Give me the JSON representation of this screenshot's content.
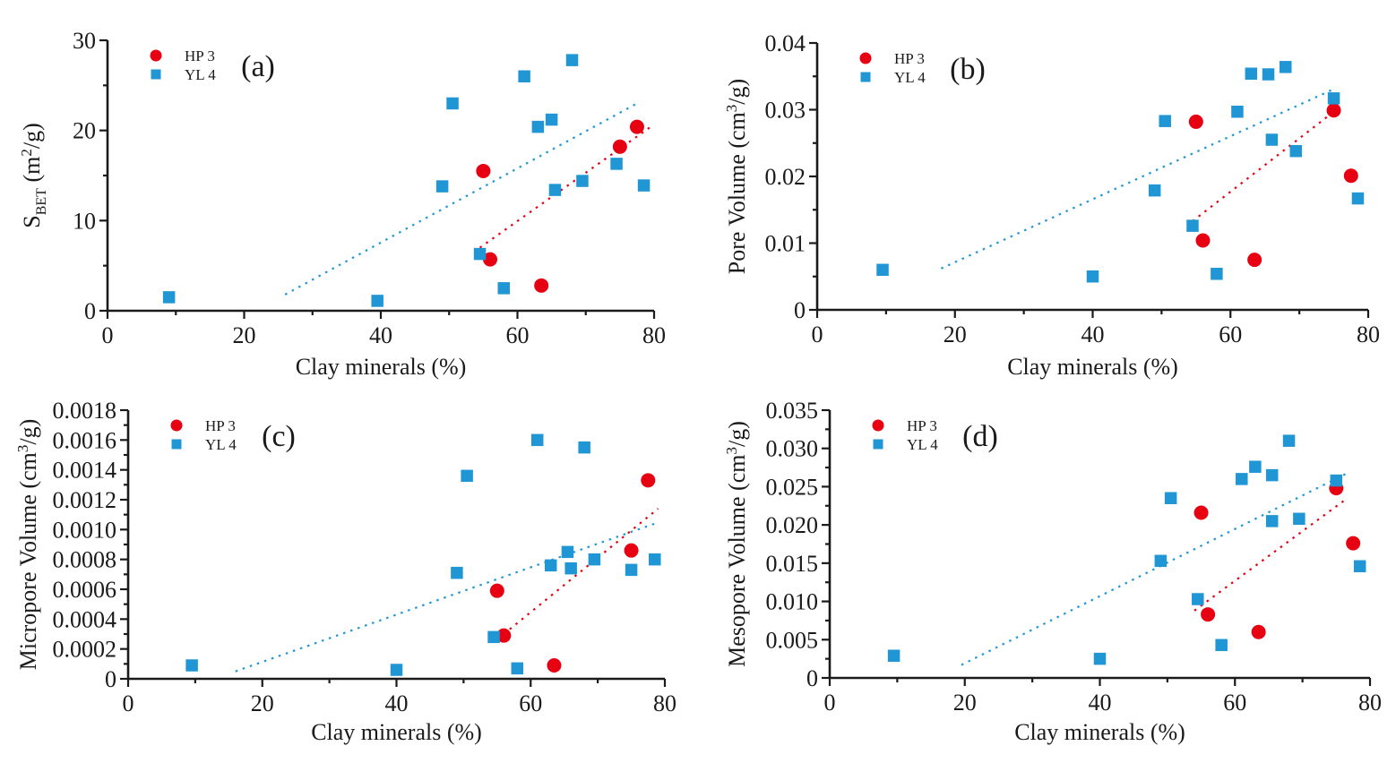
{
  "colors": {
    "hp3": "#e60011",
    "yl4": "#2097d4",
    "axis": "#1a1a1a",
    "background": "#ffffff"
  },
  "legend_labels": {
    "hp3": "HP 3",
    "yl4": "YL 4"
  },
  "xlabel": "Clay minerals (%)",
  "chart_data": [
    {
      "type": "scatter",
      "panel_label": "(a)",
      "xlabel": "Clay minerals (%)",
      "ylabel_parts": [
        {
          "t": "S"
        },
        {
          "sub": "BET"
        },
        {
          "t": " (m"
        },
        {
          "sup": "2"
        },
        {
          "t": "/g)"
        }
      ],
      "xlim": [
        0,
        80
      ],
      "xticks": [
        {
          "v": 0,
          "label": "0"
        },
        {
          "v": 20,
          "label": "20"
        },
        {
          "v": 40,
          "label": "40"
        },
        {
          "v": 60,
          "label": "60"
        },
        {
          "v": 80,
          "label": "80"
        }
      ],
      "x_minor_step": 10,
      "ylim": [
        0,
        30
      ],
      "yticks": [
        {
          "v": 0,
          "label": "0"
        },
        {
          "v": 10,
          "label": "10"
        },
        {
          "v": 20,
          "label": "20"
        },
        {
          "v": 30,
          "label": "30"
        }
      ],
      "y_minor_step": 5,
      "legend_position": "top-left",
      "grid": false,
      "series": [
        {
          "name": "HP 3",
          "marker": "circle",
          "color_key": "hp3",
          "points": [
            [
              55,
              15.5
            ],
            [
              56,
              5.7
            ],
            [
              63.5,
              2.8
            ],
            [
              75,
              18.2
            ],
            [
              77.5,
              20.4
            ]
          ]
        },
        {
          "name": "YL 4",
          "marker": "square",
          "color_key": "yl4",
          "points": [
            [
              9,
              1.5
            ],
            [
              39.5,
              1.1
            ],
            [
              49,
              13.8
            ],
            [
              50.5,
              23
            ],
            [
              54.5,
              6.3
            ],
            [
              58,
              2.5
            ],
            [
              61,
              26
            ],
            [
              63,
              20.4
            ],
            [
              65,
              21.2
            ],
            [
              65.5,
              13.4
            ],
            [
              68,
              27.8
            ],
            [
              69.5,
              14.4
            ],
            [
              74.5,
              16.3
            ],
            [
              78.5,
              13.9
            ]
          ]
        }
      ],
      "trend_lines": [
        {
          "series": "YL 4",
          "color_key": "yl4",
          "from": [
            26,
            1.8
          ],
          "to": [
            77.5,
            23.0
          ]
        },
        {
          "series": "HP 3",
          "color_key": "hp3",
          "from": [
            54.5,
            7.0
          ],
          "to": [
            79.5,
            20.4
          ]
        }
      ]
    },
    {
      "type": "scatter",
      "panel_label": "(b)",
      "xlabel": "Clay minerals (%)",
      "ylabel_parts": [
        {
          "t": "Pore Volume (cm"
        },
        {
          "sup": "3"
        },
        {
          "t": "/g)"
        }
      ],
      "xlim": [
        0,
        80
      ],
      "xticks": [
        {
          "v": 0,
          "label": "0"
        },
        {
          "v": 20,
          "label": "20"
        },
        {
          "v": 40,
          "label": "40"
        },
        {
          "v": 60,
          "label": "60"
        },
        {
          "v": 80,
          "label": "80"
        }
      ],
      "x_minor_step": 10,
      "ylim": [
        0,
        0.04
      ],
      "yticks": [
        {
          "v": 0,
          "label": "0"
        },
        {
          "v": 0.01,
          "label": "0.01"
        },
        {
          "v": 0.02,
          "label": "0.02"
        },
        {
          "v": 0.03,
          "label": "0.03"
        },
        {
          "v": 0.04,
          "label": "0.04"
        }
      ],
      "y_minor_step": 0.005,
      "legend_position": "top-left",
      "grid": false,
      "series": [
        {
          "name": "HP 3",
          "marker": "circle",
          "color_key": "hp3",
          "points": [
            [
              55,
              0.0282
            ],
            [
              56,
              0.0104
            ],
            [
              63.5,
              0.0075
            ],
            [
              75,
              0.0299
            ],
            [
              77.5,
              0.0201
            ]
          ]
        },
        {
          "name": "YL 4",
          "marker": "square",
          "color_key": "yl4",
          "points": [
            [
              9.5,
              0.006
            ],
            [
              40,
              0.005
            ],
            [
              49,
              0.0179
            ],
            [
              50.5,
              0.0283
            ],
            [
              54.5,
              0.0126
            ],
            [
              58,
              0.0054
            ],
            [
              61,
              0.0297
            ],
            [
              63,
              0.0354
            ],
            [
              65.5,
              0.0353
            ],
            [
              66,
              0.0255
            ],
            [
              68,
              0.0364
            ],
            [
              69.5,
              0.0238
            ],
            [
              75,
              0.0317
            ],
            [
              78.5,
              0.0167
            ]
          ]
        }
      ],
      "trend_lines": [
        {
          "series": "YL 4",
          "color_key": "yl4",
          "from": [
            18,
            0.0062
          ],
          "to": [
            75,
            0.0331
          ]
        },
        {
          "series": "HP 3",
          "color_key": "hp3",
          "from": [
            54.5,
            0.0133
          ],
          "to": [
            75,
            0.0297
          ]
        }
      ]
    },
    {
      "type": "scatter",
      "panel_label": "(c)",
      "xlabel": "Clay minerals (%)",
      "ylabel_parts": [
        {
          "t": "Micropore Volume (cm"
        },
        {
          "sup": "3"
        },
        {
          "t": "/g)"
        }
      ],
      "xlim": [
        0,
        80
      ],
      "xticks": [
        {
          "v": 0,
          "label": "0"
        },
        {
          "v": 20,
          "label": "20"
        },
        {
          "v": 40,
          "label": "40"
        },
        {
          "v": 60,
          "label": "60"
        },
        {
          "v": 80,
          "label": "80"
        }
      ],
      "x_minor_step": 10,
      "ylim": [
        0,
        0.0018
      ],
      "yticks": [
        {
          "v": 0,
          "label": "0"
        },
        {
          "v": 0.0002,
          "label": "0.0002"
        },
        {
          "v": 0.0004,
          "label": "0.0004"
        },
        {
          "v": 0.0006,
          "label": "0.0006"
        },
        {
          "v": 0.0008,
          "label": "0.0008"
        },
        {
          "v": 0.001,
          "label": "0.0010"
        },
        {
          "v": 0.0012,
          "label": "0.0012"
        },
        {
          "v": 0.0014,
          "label": "0.0014"
        },
        {
          "v": 0.0016,
          "label": "0.0016"
        },
        {
          "v": 0.0018,
          "label": "0.0018"
        }
      ],
      "y_minor_step": 0.0001,
      "legend_position": "top-left",
      "grid": false,
      "series": [
        {
          "name": "HP 3",
          "marker": "circle",
          "color_key": "hp3",
          "points": [
            [
              55,
              0.00059
            ],
            [
              56,
              0.00029
            ],
            [
              63.5,
              9e-05
            ],
            [
              75,
              0.00086
            ],
            [
              77.5,
              0.00133
            ]
          ]
        },
        {
          "name": "YL 4",
          "marker": "square",
          "color_key": "yl4",
          "points": [
            [
              9.5,
              9e-05
            ],
            [
              40,
              6e-05
            ],
            [
              49,
              0.00071
            ],
            [
              50.5,
              0.00136
            ],
            [
              54.5,
              0.00028
            ],
            [
              58,
              7e-05
            ],
            [
              61,
              0.0016
            ],
            [
              63,
              0.00076
            ],
            [
              65.5,
              0.00085
            ],
            [
              66,
              0.00074
            ],
            [
              68,
              0.00155
            ],
            [
              69.5,
              0.0008
            ],
            [
              75,
              0.00073
            ],
            [
              78.5,
              0.0008
            ]
          ]
        }
      ],
      "trend_lines": [
        {
          "series": "YL 4",
          "color_key": "yl4",
          "from": [
            16,
            5e-05
          ],
          "to": [
            78.5,
            0.00104
          ]
        },
        {
          "series": "HP 3",
          "color_key": "hp3",
          "from": [
            56,
            0.0003
          ],
          "to": [
            79,
            0.00114
          ]
        }
      ]
    },
    {
      "type": "scatter",
      "panel_label": "(d)",
      "xlabel": "Clay minerals (%)",
      "ylabel_parts": [
        {
          "t": "Mesopore Volume (cm"
        },
        {
          "sup": "3"
        },
        {
          "t": "/g)"
        }
      ],
      "xlim": [
        0,
        80
      ],
      "xticks": [
        {
          "v": 0,
          "label": "0"
        },
        {
          "v": 20,
          "label": "20"
        },
        {
          "v": 40,
          "label": "40"
        },
        {
          "v": 60,
          "label": "60"
        },
        {
          "v": 80,
          "label": "80"
        }
      ],
      "x_minor_step": 10,
      "ylim": [
        0,
        0.035
      ],
      "yticks": [
        {
          "v": 0,
          "label": "0"
        },
        {
          "v": 0.005,
          "label": "0.005"
        },
        {
          "v": 0.01,
          "label": "0.010"
        },
        {
          "v": 0.015,
          "label": "0.015"
        },
        {
          "v": 0.02,
          "label": "0.020"
        },
        {
          "v": 0.025,
          "label": "0.025"
        },
        {
          "v": 0.03,
          "label": "0.030"
        },
        {
          "v": 0.035,
          "label": "0.035"
        }
      ],
      "y_minor_step": 0.0025,
      "legend_position": "top-left",
      "grid": false,
      "series": [
        {
          "name": "HP 3",
          "marker": "circle",
          "color_key": "hp3",
          "points": [
            [
              55,
              0.0216
            ],
            [
              56,
              0.0083
            ],
            [
              63.5,
              0.006
            ],
            [
              75,
              0.0248
            ],
            [
              77.5,
              0.0176
            ]
          ]
        },
        {
          "name": "YL 4",
          "marker": "square",
          "color_key": "yl4",
          "points": [
            [
              9.5,
              0.0029
            ],
            [
              40,
              0.0025
            ],
            [
              49,
              0.0153
            ],
            [
              50.5,
              0.0235
            ],
            [
              54.5,
              0.0103
            ],
            [
              58,
              0.0043
            ],
            [
              61,
              0.026
            ],
            [
              63,
              0.0276
            ],
            [
              65.5,
              0.0265
            ],
            [
              65.5,
              0.0205
            ],
            [
              68,
              0.031
            ],
            [
              69.5,
              0.0208
            ],
            [
              75,
              0.0258
            ],
            [
              78.5,
              0.0146
            ]
          ]
        }
      ],
      "trend_lines": [
        {
          "series": "YL 4",
          "color_key": "yl4",
          "from": [
            19.5,
            0.0017
          ],
          "to": [
            76.5,
            0.0267
          ]
        },
        {
          "series": "HP 3",
          "color_key": "hp3",
          "from": [
            54,
            0.0088
          ],
          "to": [
            76.5,
            0.0234
          ]
        }
      ]
    }
  ]
}
